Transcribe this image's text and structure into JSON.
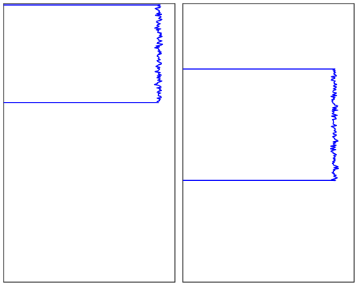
{
  "chart_data": [
    {
      "type": "line",
      "title": "",
      "xlabel": "",
      "ylabel": "",
      "grid": false,
      "line_color": "#0000ff",
      "frame_color": "#000000",
      "xlim": [
        0,
        1
      ],
      "ylim": [
        0,
        1
      ],
      "series": [
        {
          "segments": [
            {
              "x": [
                0.0,
                0.9
              ],
              "y": [
                0.995,
                0.995
              ]
            },
            {
              "x": [
                0.0,
                0.9
              ],
              "y": [
                0.645,
                0.645
              ]
            }
          ],
          "jagged_edge": {
            "x_center": 0.905,
            "amplitude": 0.02,
            "y_from": 0.645,
            "y_to": 0.995
          }
        }
      ]
    },
    {
      "type": "line",
      "title": "",
      "xlabel": "",
      "ylabel": "",
      "grid": false,
      "line_color": "#0000ff",
      "frame_color": "#000000",
      "xlim": [
        0,
        1
      ],
      "ylim": [
        0,
        1
      ],
      "series": [
        {
          "segments": [
            {
              "x": [
                0.0,
                0.88
              ],
              "y": [
                0.765,
                0.765
              ]
            },
            {
              "x": [
                0.0,
                0.88
              ],
              "y": [
                0.365,
                0.365
              ]
            }
          ],
          "jagged_edge": {
            "x_center": 0.885,
            "amplitude": 0.02,
            "y_from": 0.365,
            "y_to": 0.765
          }
        }
      ]
    }
  ]
}
